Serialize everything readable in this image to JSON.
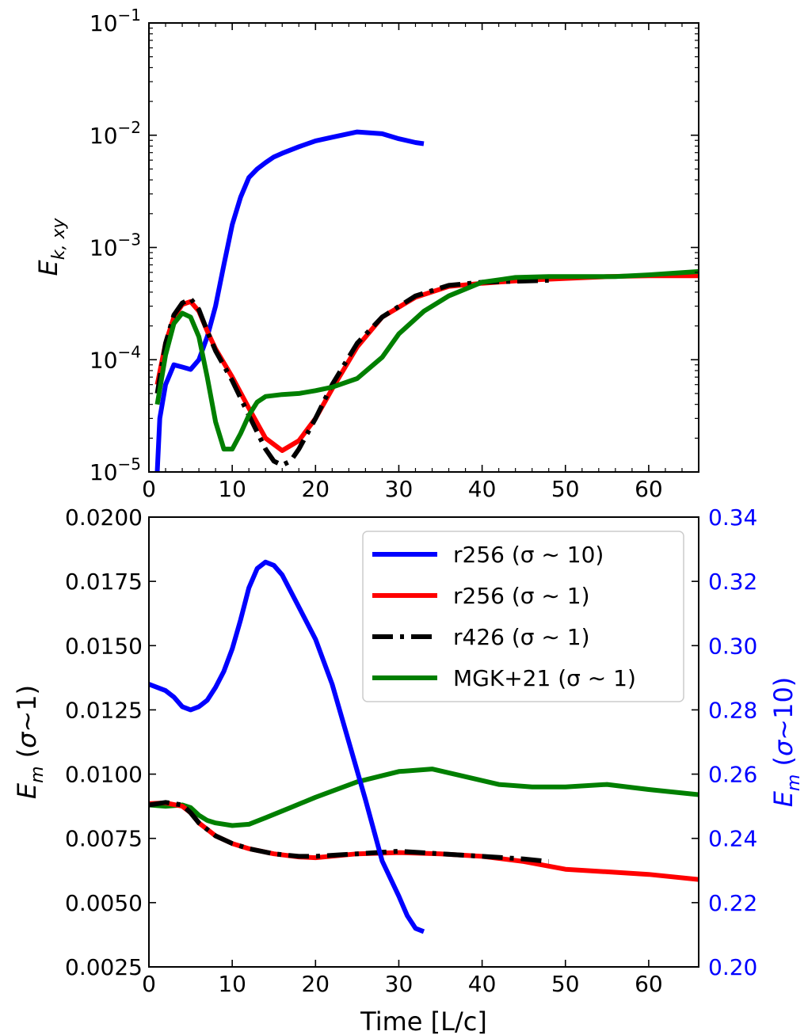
{
  "chart_data": [
    {
      "type": "line",
      "panel": "top",
      "ylabel_base": "E",
      "ylabel_sub": "k, xy",
      "xlabel": "",
      "xlim": [
        0,
        66
      ],
      "ylim": [
        1e-05,
        0.1
      ],
      "yscale": "log",
      "xticks": [
        "0",
        "10",
        "20",
        "30",
        "40",
        "50",
        "60"
      ],
      "yticks": [
        {
          "base": "10",
          "exp": "−5"
        },
        {
          "base": "10",
          "exp": "−4"
        },
        {
          "base": "10",
          "exp": "−3"
        },
        {
          "base": "10",
          "exp": "−2"
        },
        {
          "base": "10",
          "exp": "−1"
        }
      ],
      "series": [
        {
          "color": "#0000ff",
          "style": "solid",
          "x": [
            1,
            1.3,
            2,
            3,
            4,
            5,
            6,
            7,
            8,
            9,
            10,
            11,
            12,
            13,
            14,
            15,
            16,
            18,
            20,
            22,
            25,
            28,
            30,
            32,
            33
          ],
          "y": [
            1e-05,
            3e-05,
            6e-05,
            9e-05,
            8.6e-05,
            8.2e-05,
            0.0001,
            0.00016,
            0.0003,
            0.0007,
            0.0016,
            0.0028,
            0.0042,
            0.005,
            0.0057,
            0.0064,
            0.0069,
            0.0079,
            0.0089,
            0.0096,
            0.0107,
            0.0103,
            0.0093,
            0.0086,
            0.0084
          ]
        },
        {
          "color": "#ff0000",
          "style": "solid",
          "x": [
            1,
            2,
            3,
            4,
            5,
            6,
            7,
            8,
            10,
            12,
            14,
            16,
            18,
            20,
            22,
            25,
            28,
            32,
            36,
            40,
            45,
            50,
            55,
            60,
            66
          ],
          "y": [
            6e-05,
            0.00014,
            0.00024,
            0.00031,
            0.00033,
            0.00027,
            0.00018,
            0.000125,
            7e-05,
            3.7e-05,
            2e-05,
            1.55e-05,
            1.9e-05,
            3e-05,
            5.5e-05,
            0.00013,
            0.00024,
            0.00036,
            0.00045,
            0.00048,
            0.00051,
            0.00053,
            0.00055,
            0.00056,
            0.00056
          ]
        },
        {
          "color": "#000000",
          "style": "dashdot",
          "x": [
            1,
            2,
            3,
            4,
            5,
            6,
            7,
            8,
            10,
            12,
            14,
            15,
            16,
            17,
            18,
            20,
            22,
            25,
            28,
            32,
            36,
            40,
            44,
            48
          ],
          "y": [
            5e-05,
            0.00014,
            0.00025,
            0.00032,
            0.00035,
            0.00028,
            0.00018,
            0.00012,
            6.5e-05,
            3.2e-05,
            1.6e-05,
            1.25e-05,
            1.15e-05,
            1.25e-05,
            1.6e-05,
            3e-05,
            6e-05,
            0.00014,
            0.00024,
            0.00037,
            0.00046,
            0.00049,
            0.0005,
            0.00051
          ]
        },
        {
          "color": "#007f00",
          "style": "solid",
          "x": [
            1,
            2,
            3,
            4,
            5,
            6,
            7,
            8,
            9,
            10,
            11,
            12,
            13,
            14,
            16,
            18,
            20,
            22,
            25,
            28,
            30,
            33,
            36,
            40,
            44,
            48,
            52,
            56,
            60,
            66
          ],
          "y": [
            4e-05,
            0.00011,
            0.00021,
            0.00026,
            0.00024,
            0.00016,
            7e-05,
            2.8e-05,
            1.6e-05,
            1.6e-05,
            2.2e-05,
            3.2e-05,
            4.2e-05,
            4.7e-05,
            4.9e-05,
            5e-05,
            5.3e-05,
            5.7e-05,
            6.8e-05,
            0.000105,
            0.00017,
            0.00027,
            0.00037,
            0.00049,
            0.00054,
            0.00055,
            0.00055,
            0.00055,
            0.00057,
            0.00061
          ]
        }
      ]
    },
    {
      "type": "line",
      "panel": "bottom",
      "xlabel": "Time [L/c]",
      "ylabel_left": "E_m (σ∼1)",
      "ylabel_right": "E_m (σ∼10)",
      "xlim": [
        0,
        66
      ],
      "ylim_left": [
        0.0025,
        0.02
      ],
      "ylim_right": [
        0.2,
        0.34
      ],
      "right_axis_color": "#0000ff",
      "xticks": [
        "0",
        "10",
        "20",
        "30",
        "40",
        "50",
        "60"
      ],
      "yticks_left": [
        "0.0025",
        "0.0050",
        "0.0075",
        "0.0100",
        "0.0125",
        "0.0150",
        "0.0175",
        "0.0200"
      ],
      "yticks_right": [
        "0.20",
        "0.22",
        "0.24",
        "0.26",
        "0.28",
        "0.30",
        "0.32",
        "0.34"
      ],
      "legend_position": "top-right",
      "legend": [
        {
          "label": "r256 (σ ∼ 10)",
          "color": "#0000ff",
          "style": "solid"
        },
        {
          "label": "r256 (σ ∼ 1)",
          "color": "#ff0000",
          "style": "solid"
        },
        {
          "label": "r426 (σ ∼ 1)",
          "color": "#000000",
          "style": "dashdot"
        },
        {
          "label": "MGK+21 (σ ∼ 1)",
          "color": "#007f00",
          "style": "solid"
        }
      ],
      "series": [
        {
          "name": "r256 (σ ∼ 10)",
          "axis": "right",
          "color": "#0000ff",
          "style": "solid",
          "x": [
            0,
            2,
            3,
            4,
            5,
            6,
            7,
            8,
            9,
            10,
            11,
            12,
            13,
            14,
            15,
            16,
            18,
            20,
            22,
            24,
            26,
            28,
            30,
            31,
            32,
            33
          ],
          "y": [
            0.288,
            0.286,
            0.284,
            0.281,
            0.28,
            0.281,
            0.283,
            0.287,
            0.292,
            0.299,
            0.308,
            0.318,
            0.324,
            0.326,
            0.325,
            0.322,
            0.312,
            0.302,
            0.288,
            0.27,
            0.252,
            0.233,
            0.222,
            0.216,
            0.212,
            0.211
          ]
        },
        {
          "name": "r256 (σ ∼ 1)",
          "axis": "left",
          "color": "#ff0000",
          "style": "solid",
          "x": [
            0,
            2,
            4,
            5,
            6,
            8,
            10,
            12,
            15,
            18,
            20,
            25,
            30,
            35,
            40,
            45,
            50,
            55,
            60,
            66
          ],
          "y": [
            0.00885,
            0.00888,
            0.00875,
            0.0085,
            0.0081,
            0.0076,
            0.0073,
            0.0071,
            0.0069,
            0.00678,
            0.00675,
            0.0069,
            0.00695,
            0.0069,
            0.0068,
            0.0066,
            0.0063,
            0.0062,
            0.0061,
            0.0059
          ]
        },
        {
          "name": "r426 (σ ∼ 1)",
          "axis": "left",
          "color": "#000000",
          "style": "dashdot",
          "x": [
            0,
            2,
            4,
            5,
            6,
            8,
            10,
            12,
            15,
            18,
            20,
            25,
            30,
            35,
            40,
            45,
            48
          ],
          "y": [
            0.0088,
            0.0089,
            0.0088,
            0.0085,
            0.0081,
            0.0076,
            0.0073,
            0.0071,
            0.0069,
            0.0068,
            0.0068,
            0.0069,
            0.007,
            0.0069,
            0.0068,
            0.0067,
            0.0066
          ]
        },
        {
          "name": "MGK+21 (σ ∼ 1)",
          "axis": "left",
          "color": "#007f00",
          "style": "solid",
          "x": [
            0,
            2,
            4,
            5,
            6,
            7,
            8,
            10,
            12,
            14,
            17,
            20,
            25,
            30,
            34,
            38,
            42,
            46,
            50,
            55,
            60,
            66
          ],
          "y": [
            0.0088,
            0.00875,
            0.0088,
            0.0087,
            0.0084,
            0.0082,
            0.0081,
            0.008,
            0.00805,
            0.0083,
            0.0087,
            0.0091,
            0.0097,
            0.0101,
            0.0102,
            0.0099,
            0.0096,
            0.0095,
            0.0095,
            0.0096,
            0.0094,
            0.0092
          ]
        }
      ]
    }
  ]
}
